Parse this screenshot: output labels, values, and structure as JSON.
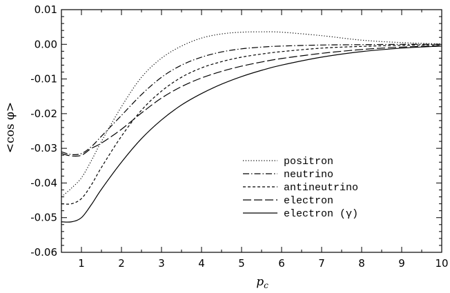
{
  "chart_data": {
    "type": "line",
    "xlabel": "p_c",
    "ylabel": "<cos φ>",
    "xlim": [
      0.5,
      10
    ],
    "ylim": [
      -0.06,
      0.01
    ],
    "x_ticks": [
      1,
      2,
      3,
      4,
      5,
      6,
      7,
      8,
      9,
      10
    ],
    "x_tick_labels": [
      "1",
      "2",
      "3",
      "4",
      "5",
      "6",
      "7",
      "8",
      "9",
      "10"
    ],
    "y_ticks": [
      0.01,
      0.0,
      -0.01,
      -0.02,
      -0.03,
      -0.04,
      -0.05,
      -0.06
    ],
    "y_tick_labels": [
      "0.01",
      "0.00",
      "-0.01",
      "-0.02",
      "-0.03",
      "-0.04",
      "-0.05",
      "-0.06"
    ],
    "grid": false,
    "legend_position": "lower-right",
    "series": [
      {
        "name": "positron",
        "style": "dotted",
        "x": [
          0.5,
          0.75,
          1.0,
          1.25,
          1.5,
          2.0,
          2.5,
          3.0,
          3.5,
          4.0,
          4.5,
          5.0,
          5.5,
          6.0,
          7.0,
          8.0,
          9.0,
          10.0
        ],
        "y": [
          -0.044,
          -0.0415,
          -0.0385,
          -0.0335,
          -0.028,
          -0.018,
          -0.0095,
          -0.004,
          -0.0005,
          0.0018,
          0.003,
          0.0035,
          0.0036,
          0.0035,
          0.0025,
          0.0012,
          0.0005,
          0.0001
        ]
      },
      {
        "name": "neutrino",
        "style": "dashdot",
        "x": [
          0.5,
          0.75,
          1.0,
          1.25,
          1.5,
          2.0,
          2.5,
          3.0,
          3.5,
          4.0,
          4.5,
          5.0,
          5.5,
          6.0,
          7.0,
          8.0,
          9.0,
          10.0
        ],
        "y": [
          -0.031,
          -0.0318,
          -0.0315,
          -0.0295,
          -0.0265,
          -0.0205,
          -0.0145,
          -0.0095,
          -0.006,
          -0.0037,
          -0.0022,
          -0.0013,
          -0.0008,
          -0.0005,
          -0.0002,
          -0.0001,
          0.0,
          0.0
        ]
      },
      {
        "name": "antineutrino",
        "style": "dashed",
        "x": [
          0.5,
          0.75,
          1.0,
          1.25,
          1.5,
          2.0,
          2.5,
          3.0,
          3.5,
          4.0,
          4.5,
          5.0,
          5.5,
          6.0,
          7.0,
          8.0,
          9.0,
          10.0
        ],
        "y": [
          -0.046,
          -0.046,
          -0.0445,
          -0.0405,
          -0.0355,
          -0.0265,
          -0.019,
          -0.0135,
          -0.0095,
          -0.0068,
          -0.005,
          -0.0037,
          -0.0028,
          -0.0021,
          -0.0011,
          -0.0006,
          -0.0003,
          -0.0001
        ]
      },
      {
        "name": "electron",
        "style": "longdash",
        "x": [
          0.5,
          0.75,
          1.0,
          1.25,
          1.5,
          2.0,
          2.5,
          3.0,
          3.5,
          4.0,
          4.5,
          5.0,
          5.5,
          6.0,
          7.0,
          8.0,
          9.0,
          10.0
        ],
        "y": [
          -0.0315,
          -0.0322,
          -0.032,
          -0.03,
          -0.0285,
          -0.0245,
          -0.0198,
          -0.0155,
          -0.0122,
          -0.0097,
          -0.0078,
          -0.0063,
          -0.0051,
          -0.0041,
          -0.0026,
          -0.0015,
          -0.0008,
          -0.0004
        ]
      },
      {
        "name": "electron (γ)",
        "style": "solid",
        "x": [
          0.5,
          0.75,
          1.0,
          1.25,
          1.5,
          2.0,
          2.5,
          3.0,
          3.5,
          4.0,
          4.5,
          5.0,
          5.5,
          6.0,
          7.0,
          8.0,
          9.0,
          10.0
        ],
        "y": [
          -0.0512,
          -0.0512,
          -0.05,
          -0.0462,
          -0.0418,
          -0.034,
          -0.0272,
          -0.0218,
          -0.0175,
          -0.0142,
          -0.0115,
          -0.0093,
          -0.0075,
          -0.006,
          -0.0037,
          -0.0021,
          -0.0011,
          -0.0005
        ]
      }
    ]
  }
}
